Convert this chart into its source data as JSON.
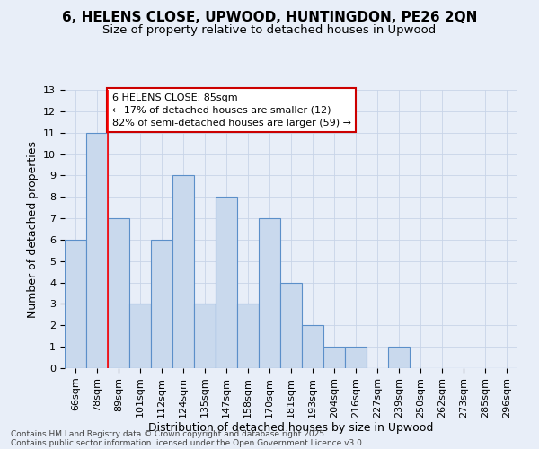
{
  "title_line1": "6, HELENS CLOSE, UPWOOD, HUNTINGDON, PE26 2QN",
  "title_line2": "Size of property relative to detached houses in Upwood",
  "xlabel": "Distribution of detached houses by size in Upwood",
  "ylabel": "Number of detached properties",
  "categories": [
    "66sqm",
    "78sqm",
    "89sqm",
    "101sqm",
    "112sqm",
    "124sqm",
    "135sqm",
    "147sqm",
    "158sqm",
    "170sqm",
    "181sqm",
    "193sqm",
    "204sqm",
    "216sqm",
    "227sqm",
    "239sqm",
    "250sqm",
    "262sqm",
    "273sqm",
    "285sqm",
    "296sqm"
  ],
  "values": [
    6,
    11,
    7,
    3,
    6,
    9,
    3,
    8,
    3,
    7,
    4,
    2,
    1,
    1,
    0,
    1,
    0,
    0,
    0,
    0,
    0
  ],
  "bar_color": "#c9d9ed",
  "bar_edge_color": "#5b8fc9",
  "bar_linewidth": 0.8,
  "grid_color": "#c8d4e8",
  "background_color": "#e8eef8",
  "red_line_x": 1.5,
  "annotation_title": "6 HELENS CLOSE: 85sqm",
  "annotation_line1": "← 17% of detached houses are smaller (12)",
  "annotation_line2": "82% of semi-detached houses are larger (59) →",
  "annotation_box_color": "#ffffff",
  "annotation_border_color": "#cc0000",
  "ylim": [
    0,
    13
  ],
  "yticks": [
    0,
    1,
    2,
    3,
    4,
    5,
    6,
    7,
    8,
    9,
    10,
    11,
    12,
    13
  ],
  "footnote_line1": "Contains HM Land Registry data © Crown copyright and database right 2025.",
  "footnote_line2": "Contains public sector information licensed under the Open Government Licence v3.0.",
  "title_fontsize": 11,
  "subtitle_fontsize": 9.5,
  "axis_label_fontsize": 9,
  "tick_fontsize": 8,
  "annotation_fontsize": 8,
  "footnote_fontsize": 6.5
}
